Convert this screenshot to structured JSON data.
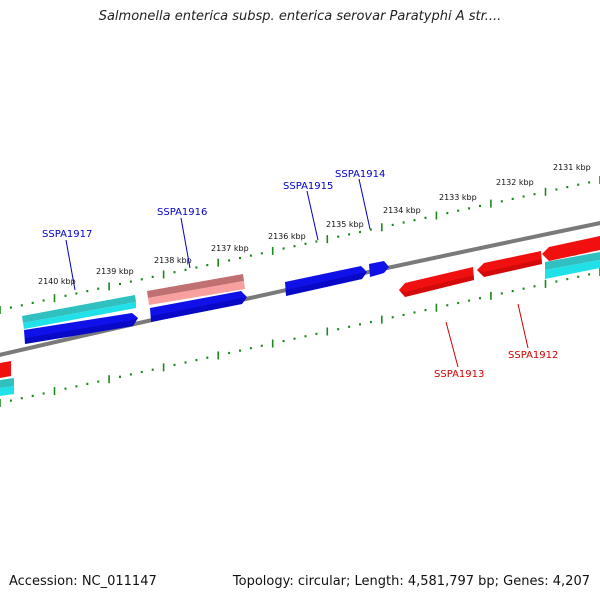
{
  "title": "Salmonella enterica subsp. enterica serovar Paratyphi A str....",
  "footer": {
    "accession": "Accession: NC_011147",
    "stats": "Topology: circular; Length: 4,581,797 bp; Genes: 4,207"
  },
  "colors": {
    "backbone": "#7a7a7a",
    "tick": "#1a8a1a",
    "forward_cds": "#1010e8",
    "forward_cds_alt": "#f08888",
    "reverse_cds": "#f01010",
    "other_feature": "#20d8d8",
    "label_forward": "#0000c8",
    "label_reverse": "#d00000"
  },
  "scale_labels": [
    "2131 kbp",
    "2132 kbp",
    "2133 kbp",
    "2134 kbp",
    "2135 kbp",
    "2136 kbp",
    "2137 kbp",
    "2138 kbp",
    "2139 kbp",
    "2140 kbp"
  ],
  "gene_labels": {
    "forward": [
      "SSPA1917",
      "SSPA1916",
      "SSPA1915",
      "SSPA1914"
    ],
    "reverse": [
      "SSPA1913",
      "SSPA1912"
    ]
  }
}
